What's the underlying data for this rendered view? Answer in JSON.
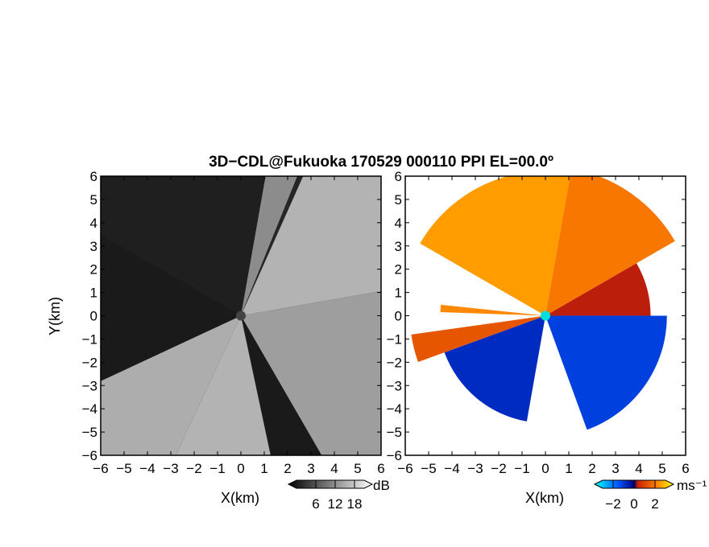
{
  "title": "3D−CDL@Fukuoka 170529 000110 PPI EL=00.0º",
  "chart_data": [
    {
      "type": "heatmap",
      "panel": "left",
      "quantity_label": "dB",
      "xlabel": "X(km)",
      "ylabel": "Y(km)",
      "xlim": [
        -6,
        6
      ],
      "ylim": [
        -6,
        6
      ],
      "xticks": [
        "−6",
        "−5",
        "−4",
        "−3",
        "−2",
        "−1",
        "0",
        "1",
        "2",
        "3",
        "4",
        "5",
        "6"
      ],
      "yticks": [
        "6",
        "5",
        "4",
        "3",
        "2",
        "1",
        "0",
        "−1",
        "−2",
        "−3",
        "−4",
        "−5",
        "−6"
      ],
      "colorbar": {
        "unit": "dB",
        "ticks": [
          6,
          12,
          18
        ],
        "tick_labels": [
          "6",
          "12",
          "18"
        ],
        "range": [
          0,
          21
        ],
        "colors": [
          "#000000",
          "#ffffff"
        ],
        "out_of_range_color": "#ffee00"
      },
      "sectors": [
        {
          "az_from": -60,
          "az_to": 10,
          "level": 0.12
        },
        {
          "az_from": 10,
          "az_to": 22,
          "level": 0.55
        },
        {
          "az_from": 22,
          "az_to": 24,
          "level": 0.15
        },
        {
          "az_from": 24,
          "az_to": 80,
          "level": 0.7
        },
        {
          "az_from": 80,
          "az_to": 150,
          "level": 0.62
        },
        {
          "az_from": 150,
          "az_to": 168,
          "level": 0.1
        },
        {
          "az_from": 168,
          "az_to": 205,
          "level": 0.7
        },
        {
          "az_from": 205,
          "az_to": 245,
          "level": 0.68
        },
        {
          "az_from": 245,
          "az_to": 300,
          "level": 0.1
        }
      ]
    },
    {
      "type": "heatmap",
      "panel": "right",
      "quantity_label": "ms⁻¹",
      "xlabel": "X(km)",
      "xlim": [
        -6,
        6
      ],
      "ylim": [
        -6,
        6
      ],
      "xticks": [
        "−6",
        "−5",
        "−4",
        "−3",
        "−2",
        "−1",
        "0",
        "1",
        "2",
        "3",
        "4",
        "5",
        "6"
      ],
      "yticks": [
        "6",
        "5",
        "4",
        "3",
        "2",
        "1",
        "0",
        "−1",
        "−2",
        "−3",
        "−4",
        "−5",
        "−6"
      ],
      "colorbar": {
        "unit": "ms⁻¹",
        "ticks": [
          -2,
          0,
          2
        ],
        "tick_labels": [
          "−2",
          "0",
          "2"
        ],
        "range": [
          -3,
          3
        ],
        "colors": [
          "#00ffff",
          "#0055ff",
          "#000080",
          "#cc2200",
          "#ff8800",
          "#ffff00"
        ]
      },
      "sectors": [
        {
          "az_from": -60,
          "az_to": 10,
          "value": 2.0,
          "max_range": 6.2
        },
        {
          "az_from": 10,
          "az_to": 60,
          "value": 1.6,
          "max_range": 6.4
        },
        {
          "az_from": 60,
          "az_to": 90,
          "value": 0.5,
          "max_range": 4.5
        },
        {
          "az_from": 90,
          "az_to": 160,
          "value": -1.5,
          "max_range": 5.2
        },
        {
          "az_from": 190,
          "az_to": 250,
          "value": -1.2,
          "max_range": 4.6
        },
        {
          "az_from": 250,
          "az_to": 262,
          "value": 1.2,
          "max_range": 5.8
        },
        {
          "az_from": 272,
          "az_to": 276,
          "value": 1.8,
          "max_range": 4.5
        }
      ]
    }
  ]
}
